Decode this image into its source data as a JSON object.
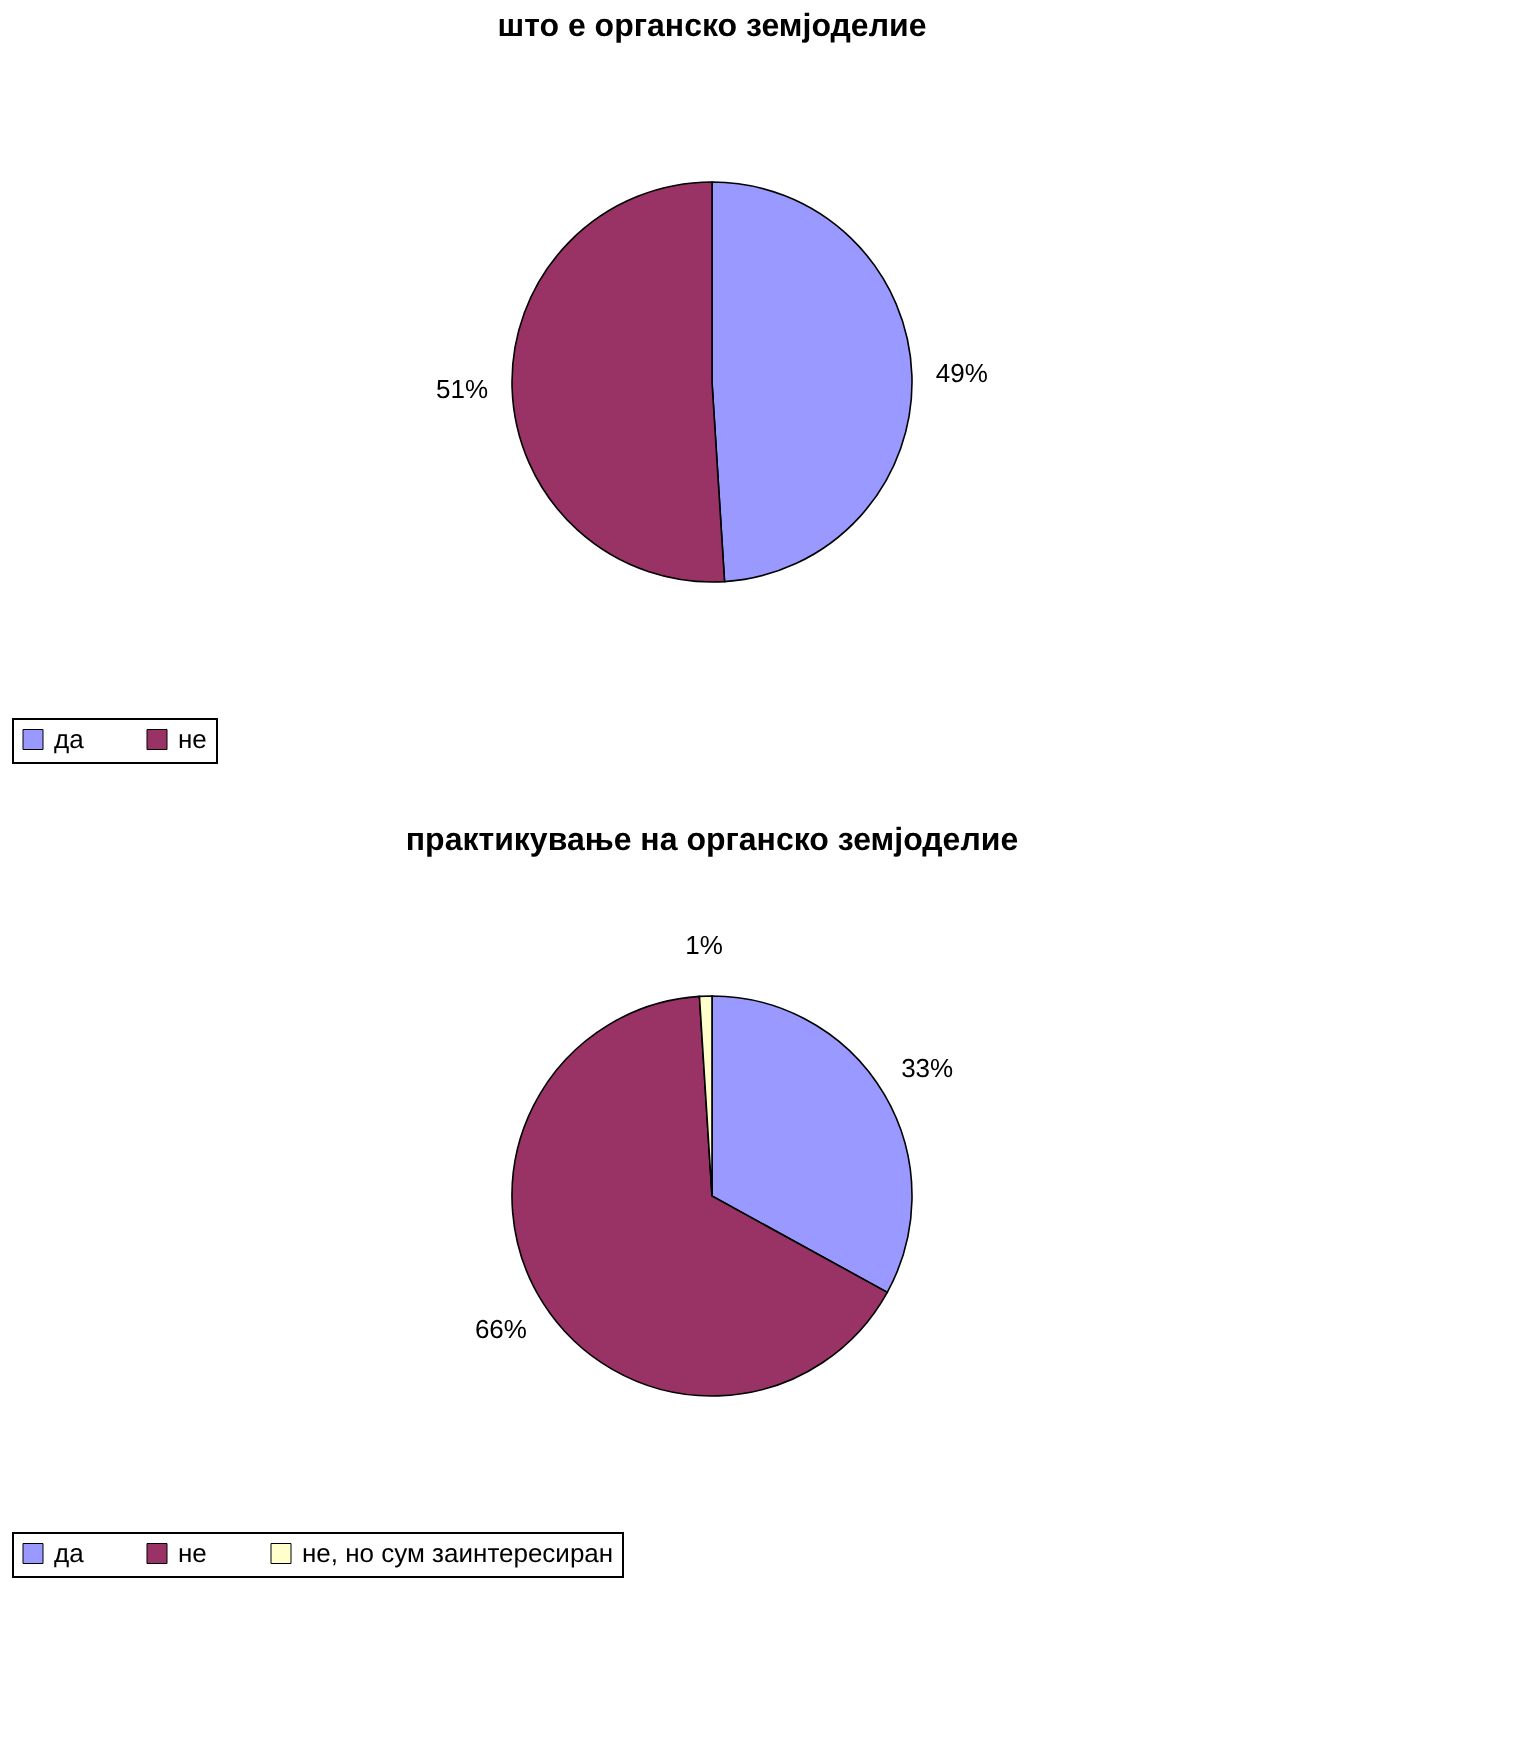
{
  "chart_data": [
    {
      "type": "pie",
      "title": "што е органско земјоделие",
      "categories": [
        "да",
        "не"
      ],
      "values": [
        49,
        51
      ],
      "colors": [
        "#9999ff",
        "#993366"
      ],
      "value_labels": [
        "49%",
        "51%"
      ],
      "legend": "bottom"
    },
    {
      "type": "pie",
      "title": "практикување на органско земјоделие",
      "categories": [
        "да",
        "не",
        "не, но сум заинтересиран"
      ],
      "values": [
        33,
        66,
        1
      ],
      "colors": [
        "#9999ff",
        "#993366",
        "#ffffcc"
      ],
      "value_labels": [
        "33%",
        "66%",
        "1%"
      ],
      "legend": "bottom"
    }
  ]
}
